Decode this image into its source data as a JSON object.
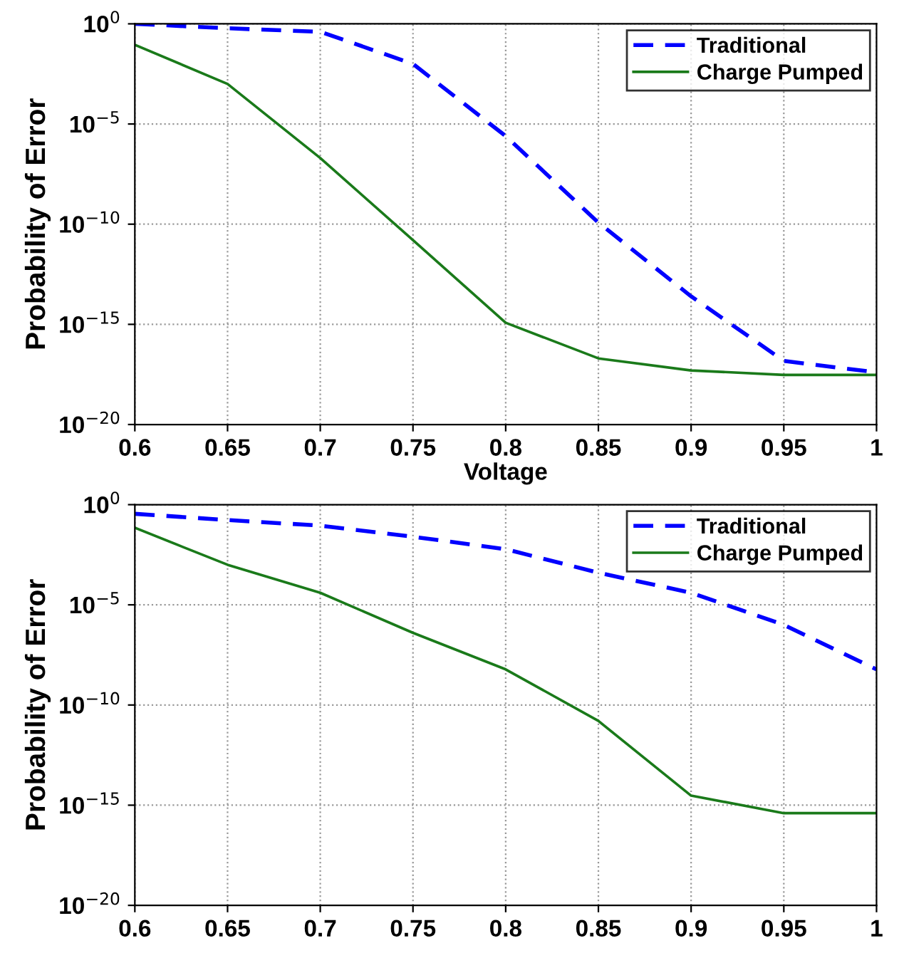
{
  "chart_data": [
    {
      "type": "line",
      "xlabel": "Voltage",
      "ylabel": "Probability of Error",
      "log": "y",
      "grid": true,
      "legend": "top right",
      "x": [
        0.6,
        0.65,
        0.7,
        0.75,
        0.8,
        0.85,
        0.9,
        0.95,
        1
      ],
      "series": [
        {
          "name": "Traditional",
          "color": "#0000ff",
          "line_style": "dashed",
          "values": [
            1,
            0.6,
            0.4,
            0.01,
            2.5e-06,
            1.2e-10,
            2.5e-14,
            1.5e-17,
            4e-18
          ]
        },
        {
          "name": "Charge Pumped",
          "color": "#1a7a1a",
          "line_style": "solid",
          "values": [
            0.09,
            0.001,
            2e-07,
            1.6e-11,
            1.2e-15,
            2e-17,
            5e-18,
            3e-18,
            3e-18
          ]
        }
      ],
      "xlim": [
        0.6,
        1
      ],
      "xticks": [
        0.6,
        0.65,
        0.7,
        0.75,
        0.8,
        0.85,
        0.9,
        0.95,
        1
      ],
      "ylim": [
        1e-20,
        1
      ],
      "yticks": [
        {
          "value": 1e-20,
          "label": "10$^{−20}$"
        },
        {
          "value": 1e-15,
          "label": "10$^{−15}$"
        },
        {
          "value": 1e-10,
          "label": "10$^{−10}$"
        },
        {
          "value": 1e-05,
          "label": "10$^{−5}$"
        },
        {
          "value": 1,
          "label": "10$^{0}$"
        }
      ]
    },
    {
      "type": "line",
      "ylabel": "Probability of Error",
      "log": "y",
      "grid": true,
      "legend": "top right",
      "x": [
        0.6,
        0.65,
        0.7,
        0.75,
        0.8,
        0.85,
        0.9,
        0.95,
        1
      ],
      "series": [
        {
          "name": "Traditional",
          "color": "#0000ff",
          "line_style": "dashed",
          "values": [
            0.35,
            0.17,
            0.09,
            0.025,
            0.006,
            0.0004,
            4e-05,
            1e-06,
            6e-09
          ]
        },
        {
          "name": "Charge Pumped",
          "color": "#1a7a1a",
          "line_style": "solid",
          "values": [
            0.07,
            0.001,
            4e-05,
            4e-07,
            6e-09,
            1.6e-11,
            3e-15,
            4e-16,
            4e-16
          ]
        }
      ],
      "xlim": [
        0.6,
        1
      ],
      "xticks": [
        0.6,
        0.65,
        0.7,
        0.75,
        0.8,
        0.85,
        0.9,
        0.95,
        1
      ],
      "ylim": [
        1e-20,
        1
      ],
      "yticks": [
        {
          "value": 1e-20,
          "label": "10$^{−20}$"
        },
        {
          "value": 1e-15,
          "label": "10$^{−15}$"
        },
        {
          "value": 1e-10,
          "label": "10$^{−10}$"
        },
        {
          "value": 1e-05,
          "label": "10$^{−5}$"
        },
        {
          "value": 1,
          "label": "10$^{0}$"
        }
      ]
    }
  ]
}
